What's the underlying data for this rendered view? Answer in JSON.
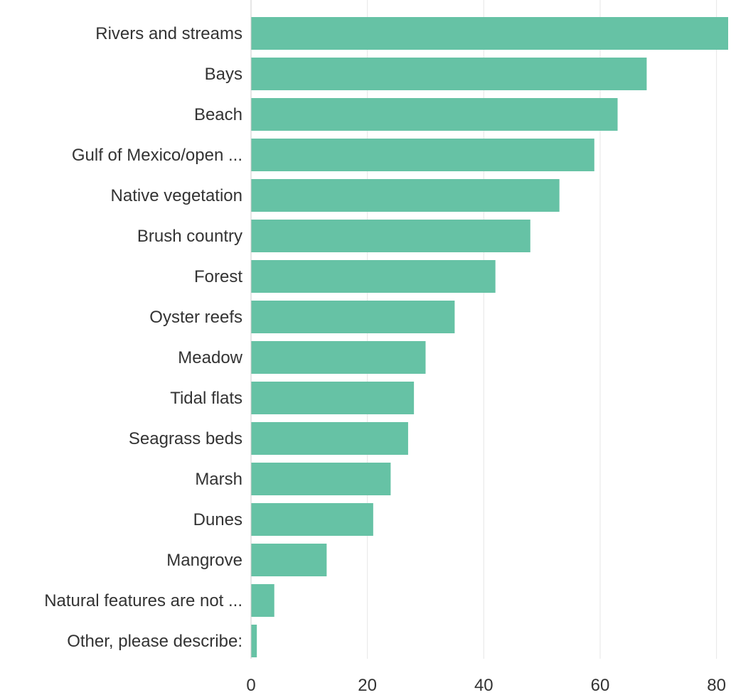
{
  "chart_data": {
    "type": "bar",
    "orientation": "horizontal",
    "title": "",
    "xlabel": "",
    "ylabel": "",
    "categories": [
      "Rivers and streams",
      "Bays",
      "Beach",
      "Gulf of Mexico/open ...",
      "Native vegetation",
      "Brush country",
      "Forest",
      "Oyster reefs",
      "Meadow",
      "Tidal flats",
      "Seagrass beds",
      "Marsh",
      "Dunes",
      "Mangrove",
      "Natural features are not ...",
      "Other, please describe:"
    ],
    "values": [
      82,
      68,
      63,
      59,
      53,
      48,
      42,
      35,
      30,
      28,
      27,
      24,
      21,
      13,
      4,
      1
    ],
    "xlim": [
      0,
      82
    ],
    "xticks": [
      0,
      20,
      40,
      60,
      80
    ],
    "xtick_labels": [
      "0",
      "20",
      "40",
      "60",
      "80"
    ],
    "grid": true,
    "legend": "none",
    "bar_color": "#66c2a5"
  }
}
